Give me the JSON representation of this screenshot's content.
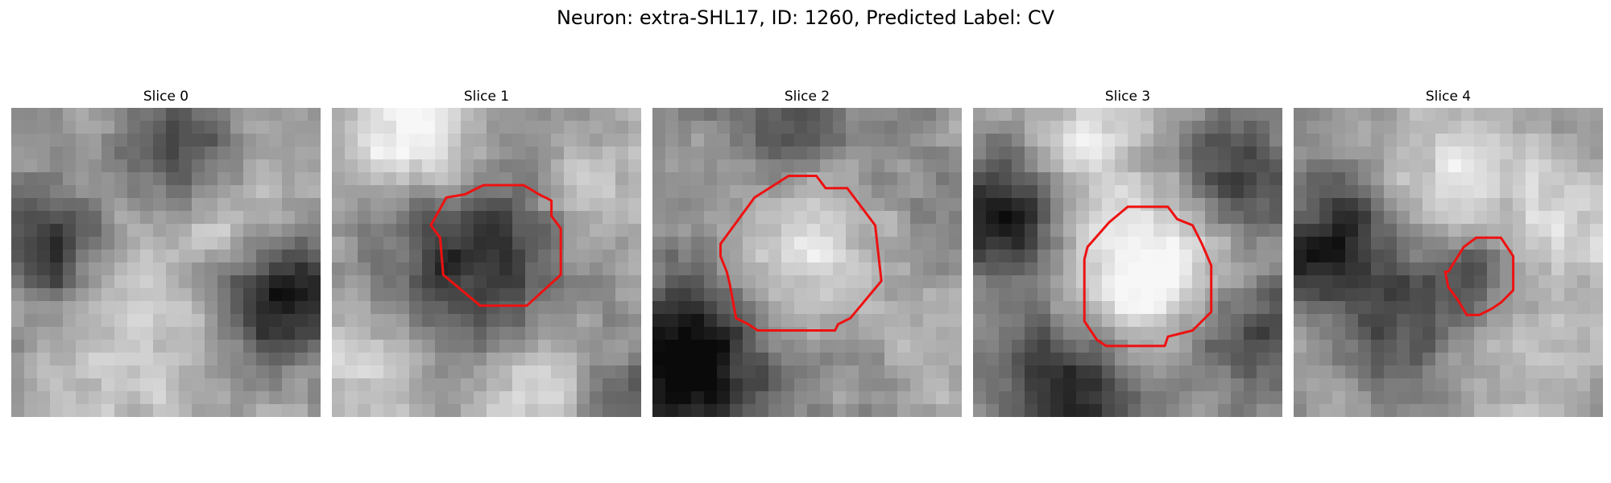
{
  "figure": {
    "title": "Neuron: extra-SHL17, ID: 1260, Predicted Label: CV"
  },
  "panels": [
    {
      "title": "Slice 0",
      "image": {
        "seed": 11,
        "blobs": [
          [
            0.12,
            0.45,
            0.12,
            -0.45
          ],
          [
            0.55,
            0.15,
            0.12,
            -0.4
          ],
          [
            0.88,
            0.62,
            0.14,
            -0.6
          ],
          [
            0.4,
            0.75,
            0.16,
            0.25
          ],
          [
            0.7,
            0.35,
            0.15,
            0.2
          ]
        ]
      },
      "contour": null
    },
    {
      "title": "Slice 1",
      "image": {
        "seed": 23,
        "blobs": [
          [
            0.45,
            0.5,
            0.22,
            -0.45
          ],
          [
            0.27,
            0.1,
            0.14,
            0.45
          ],
          [
            0.85,
            0.3,
            0.14,
            0.2
          ],
          [
            0.1,
            0.8,
            0.15,
            0.25
          ],
          [
            0.65,
            0.88,
            0.14,
            0.3
          ],
          [
            0.95,
            0.95,
            0.12,
            -0.3
          ]
        ]
      },
      "contour": [
        [
          0.32,
          0.38
        ],
        [
          0.37,
          0.29
        ],
        [
          0.43,
          0.28
        ],
        [
          0.49,
          0.25
        ],
        [
          0.62,
          0.25
        ],
        [
          0.67,
          0.28
        ],
        [
          0.71,
          0.3
        ],
        [
          0.71,
          0.35
        ],
        [
          0.74,
          0.39
        ],
        [
          0.74,
          0.54
        ],
        [
          0.63,
          0.64
        ],
        [
          0.48,
          0.64
        ],
        [
          0.36,
          0.54
        ],
        [
          0.35,
          0.42
        ]
      ]
    },
    {
      "title": "Slice 2",
      "image": {
        "seed": 37,
        "blobs": [
          [
            0.5,
            0.46,
            0.2,
            0.55
          ],
          [
            0.5,
            0.46,
            0.32,
            -0.3
          ],
          [
            0.1,
            0.82,
            0.16,
            -0.65
          ],
          [
            0.45,
            0.05,
            0.1,
            -0.25
          ],
          [
            0.88,
            0.78,
            0.14,
            0.15
          ]
        ]
      },
      "contour": [
        [
          0.22,
          0.44
        ],
        [
          0.33,
          0.29
        ],
        [
          0.44,
          0.22
        ],
        [
          0.53,
          0.22
        ],
        [
          0.56,
          0.26
        ],
        [
          0.63,
          0.26
        ],
        [
          0.72,
          0.38
        ],
        [
          0.74,
          0.56
        ],
        [
          0.64,
          0.68
        ],
        [
          0.6,
          0.7
        ],
        [
          0.59,
          0.72
        ],
        [
          0.34,
          0.72
        ],
        [
          0.31,
          0.7
        ],
        [
          0.27,
          0.68
        ],
        [
          0.25,
          0.57
        ],
        [
          0.24,
          0.53
        ],
        [
          0.22,
          0.48
        ]
      ]
    },
    {
      "title": "Slice 3",
      "image": {
        "seed": 41,
        "blobs": [
          [
            0.55,
            0.52,
            0.18,
            0.45
          ],
          [
            0.1,
            0.35,
            0.14,
            -0.55
          ],
          [
            0.3,
            0.9,
            0.16,
            -0.5
          ],
          [
            0.85,
            0.2,
            0.14,
            -0.4
          ],
          [
            0.9,
            0.75,
            0.15,
            -0.35
          ],
          [
            0.35,
            0.12,
            0.12,
            0.3
          ]
        ]
      },
      "contour": [
        [
          0.37,
          0.45
        ],
        [
          0.44,
          0.37
        ],
        [
          0.5,
          0.32
        ],
        [
          0.5,
          0.32
        ],
        [
          0.63,
          0.32
        ],
        [
          0.66,
          0.36
        ],
        [
          0.71,
          0.38
        ],
        [
          0.74,
          0.44
        ],
        [
          0.77,
          0.51
        ],
        [
          0.77,
          0.66
        ],
        [
          0.71,
          0.72
        ],
        [
          0.63,
          0.74
        ],
        [
          0.62,
          0.77
        ],
        [
          0.57,
          0.77
        ],
        [
          0.43,
          0.77
        ],
        [
          0.4,
          0.75
        ],
        [
          0.36,
          0.69
        ],
        [
          0.36,
          0.49
        ]
      ]
    },
    {
      "title": "Slice 4",
      "image": {
        "seed": 53,
        "blobs": [
          [
            0.6,
            0.53,
            0.1,
            -0.35
          ],
          [
            0.12,
            0.45,
            0.16,
            -0.5
          ],
          [
            0.35,
            0.72,
            0.12,
            -0.3
          ],
          [
            0.55,
            0.2,
            0.18,
            0.25
          ],
          [
            0.88,
            0.4,
            0.14,
            0.2
          ],
          [
            0.8,
            0.82,
            0.14,
            0.15
          ]
        ]
      },
      "contour": [
        [
          0.5,
          0.53
        ],
        [
          0.55,
          0.45
        ],
        [
          0.59,
          0.42
        ],
        [
          0.67,
          0.42
        ],
        [
          0.69,
          0.45
        ],
        [
          0.71,
          0.48
        ],
        [
          0.71,
          0.59
        ],
        [
          0.67,
          0.63
        ],
        [
          0.64,
          0.65
        ],
        [
          0.6,
          0.67
        ],
        [
          0.56,
          0.67
        ],
        [
          0.53,
          0.62
        ],
        [
          0.5,
          0.58
        ],
        [
          0.49,
          0.53
        ]
      ]
    }
  ],
  "colors": {
    "contour": "#ee1111",
    "title": "#000000"
  }
}
